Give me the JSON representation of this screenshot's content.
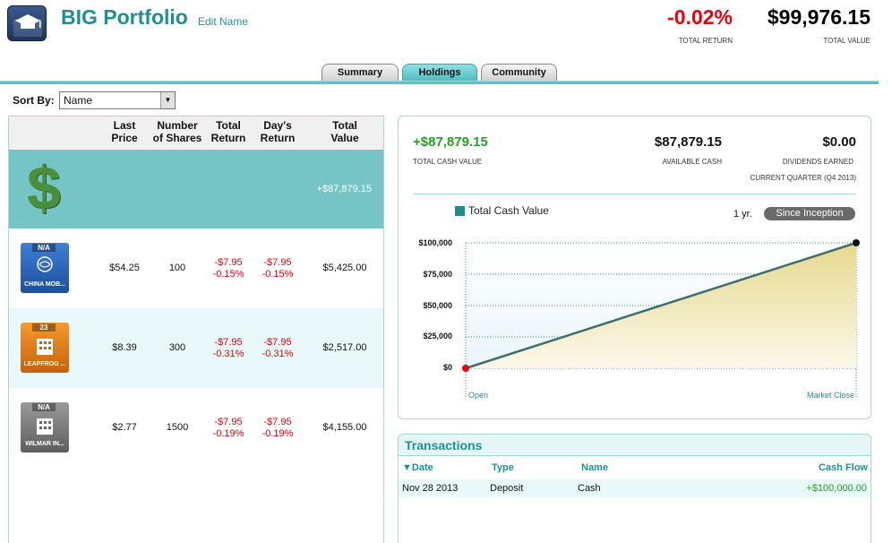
{
  "header": {
    "portfolio_name": "BIG Portfolio",
    "edit_name_label": "Edit Name",
    "total_return": "-0.02%",
    "total_return_label": "TOTAL RETURN",
    "total_value": "$99,976.15",
    "total_value_label": "TOTAL VALUE",
    "logo_icon": "briefcase-graduation-cap-icon"
  },
  "tabs": [
    {
      "label": "Summary",
      "active": false
    },
    {
      "label": "Holdings",
      "active": true
    },
    {
      "label": "Community",
      "active": false
    }
  ],
  "sort": {
    "label": "Sort By:",
    "selected": "Name"
  },
  "holdings": {
    "columns": {
      "last_price": [
        "Last",
        "Price"
      ],
      "shares": [
        "Number",
        "of Shares"
      ],
      "total_return": [
        "Total",
        "Return"
      ],
      "days_return": [
        "Day's",
        "Return"
      ],
      "total_value": [
        "Total",
        "Value"
      ]
    },
    "cash": {
      "icon": "dollar-sign-icon",
      "value": "+$87,879.15"
    },
    "rows": [
      {
        "badge": "N/A",
        "name": "CHINA MOB...",
        "icon_color": "#2a63b8",
        "price": "$54.25",
        "shares": "100",
        "tr_abs": "-$7.95",
        "tr_pct": "-0.15%",
        "dr_abs": "-$7.95",
        "dr_pct": "-0.15%",
        "value": "$5,425.00"
      },
      {
        "badge": "23",
        "name": "LEAPFROG ...",
        "icon_color": "#e07a14",
        "price": "$8.39",
        "shares": "300",
        "tr_abs": "-$7.95",
        "tr_pct": "-0.31%",
        "dr_abs": "-$7.95",
        "dr_pct": "-0.31%",
        "value": "$2,517.00"
      },
      {
        "badge": "N/A",
        "name": "WILMAR IN...",
        "icon_color": "#777777",
        "price": "$2.77",
        "shares": "1500",
        "tr_abs": "-$7.95",
        "tr_pct": "-0.19%",
        "dr_abs": "-$7.95",
        "dr_pct": "-0.19%",
        "value": "$4,155.00"
      }
    ]
  },
  "summary": {
    "total_cash_value": "+$87,879.15",
    "total_cash_label": "TOTAL CASH VALUE",
    "available_cash": "$87,879.15",
    "available_cash_label": "AVAILABLE CASH",
    "dividends": "$0.00",
    "dividends_label": "DIVIDENDS EARNED",
    "quarter_label": "CURRENT QUARTER (Q4 2013)",
    "range_1yr": "1 yr.",
    "range_inception": "Since Inception"
  },
  "chart_data": {
    "type": "area",
    "legend": [
      "Total Cash Value"
    ],
    "x": [
      "Open",
      "Market Close"
    ],
    "series": [
      {
        "name": "Total Cash Value",
        "values": [
          0,
          100000
        ]
      }
    ],
    "yticks": [
      "$100,000",
      "$75,000",
      "$50,000",
      "$25,000",
      "$0"
    ],
    "ylim": [
      0,
      100000
    ],
    "grid": true,
    "colors": {
      "line": "#3f6f6f",
      "fill": "#e9dfa4",
      "start_point": "#e8000b",
      "end_point": "#111111"
    }
  },
  "transactions": {
    "title": "Transactions",
    "columns": {
      "date": "Date",
      "type": "Type",
      "name": "Name",
      "cash_flow": "Cash Flow"
    },
    "rows": [
      {
        "date": "Nov 28 2013",
        "type": "Deposit",
        "name": "Cash",
        "cash_flow": "+$100,000.00"
      }
    ]
  }
}
